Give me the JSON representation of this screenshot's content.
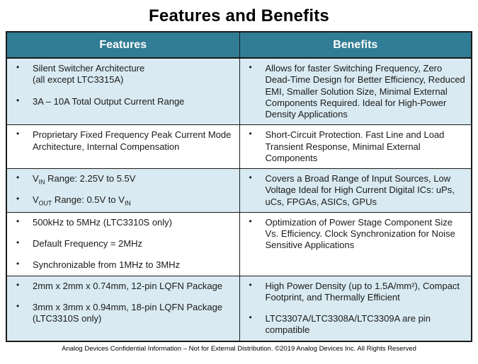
{
  "page": {
    "title": "Features and Benefits",
    "footer": "Analog Devices Confidential Information – Not for External Distribution. ©2019 Analog Devices Inc. All Rights Reserved"
  },
  "colors": {
    "header_bg": "#317D95",
    "header_text": "#FFFFFF",
    "row_bg": "#FFFFFF",
    "row_alt_bg": "#D9EAF2",
    "border": "#1A1A1A",
    "body_text": "#1A1A1A"
  },
  "table": {
    "columns": [
      "Features",
      "Benefits"
    ],
    "rows": [
      {
        "shaded": true,
        "features": [
          "Silent Switcher Architecture\n(all except LTC3315A)",
          "3A – 10A Total Output Current Range"
        ],
        "benefits": [
          "Allows for faster Switching Frequency, Zero Dead-Time Design for Better Efficiency, Reduced EMI, Smaller Solution Size, Minimal External Components Required. Ideal for High-Power Density Applications"
        ]
      },
      {
        "shaded": false,
        "features": [
          "Proprietary Fixed Frequency Peak Current Mode Architecture, Internal Compensation"
        ],
        "benefits": [
          "Short-Circuit Protection. Fast Line and Load Transient Response, Minimal External Components"
        ]
      },
      {
        "shaded": true,
        "features": [
          "V~IN~ Range: 2.25V to 5.5V",
          "V~OUT~ Range: 0.5V to V~IN~"
        ],
        "benefits": [
          "Covers a Broad Range of Input Sources, Low Voltage Ideal for High Current Digital ICs: uPs, uCs, FPGAs, ASICs, GPUs"
        ]
      },
      {
        "shaded": false,
        "features": [
          "500kHz to 5MHz (LTC3310S only)",
          "Default Frequency = 2MHz",
          "Synchronizable from 1MHz to 3MHz"
        ],
        "benefits": [
          "Optimization of Power Stage Component Size Vs. Efficiency. Clock Synchronization for Noise Sensitive Applications"
        ]
      },
      {
        "shaded": true,
        "features": [
          "2mm x 2mm x 0.74mm, 12-pin LQFN Package",
          "3mm x 3mm x 0.94mm, 18-pin LQFN Package\n(LTC3310S only)"
        ],
        "benefits": [
          "High Power Density (up to 1.5A/mm²), Compact Footprint, and Thermally Efficient",
          "LTC3307A/LTC3308A/LTC3309A are pin compatible"
        ]
      }
    ]
  }
}
